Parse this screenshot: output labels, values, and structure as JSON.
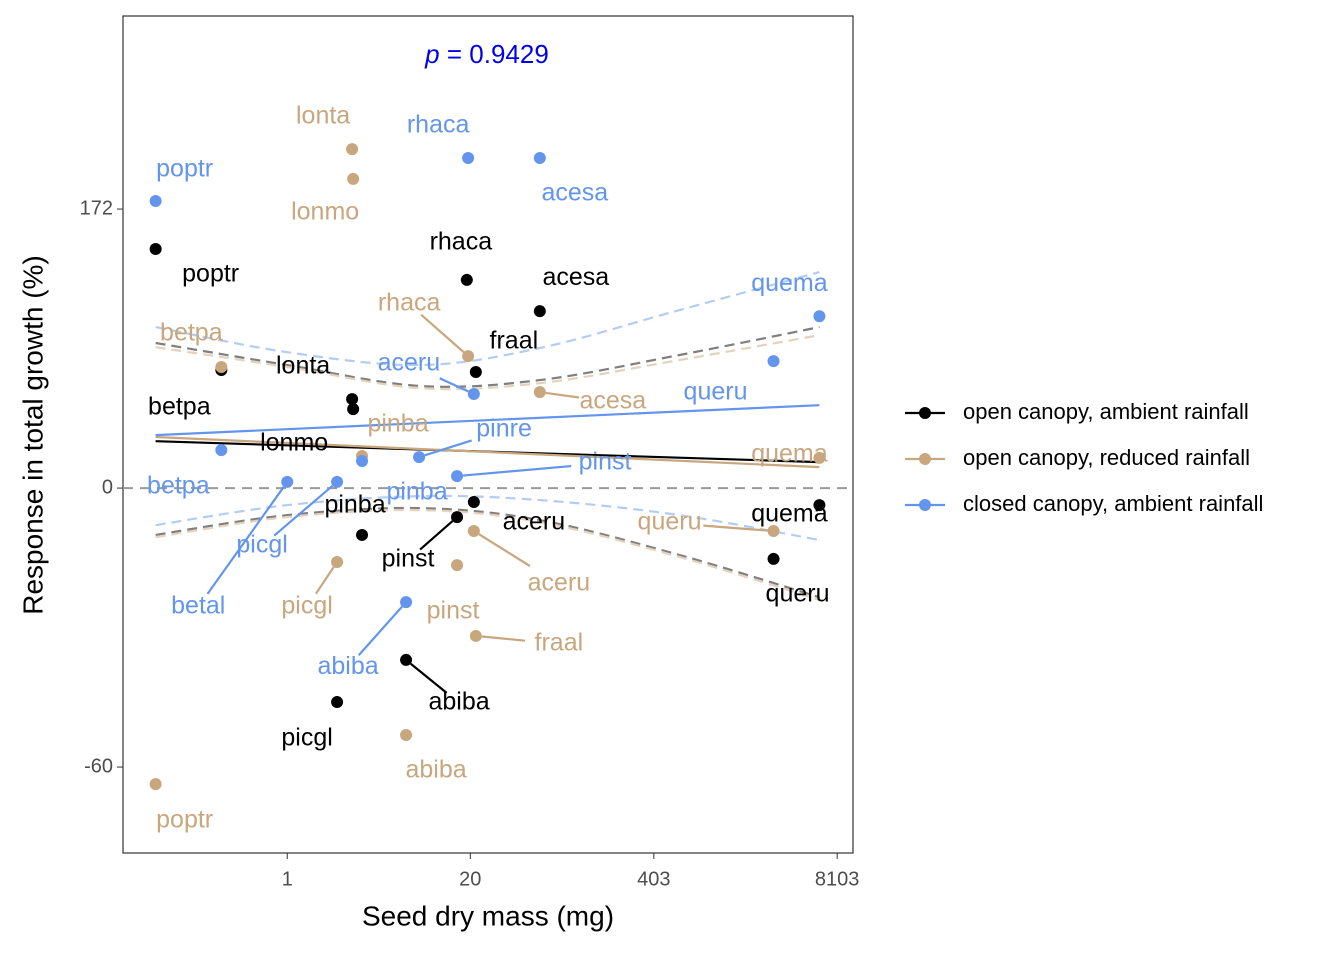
{
  "chart_data": {
    "type": "scatter",
    "annotation_var": "p",
    "annotation_value": "= 0.9429",
    "annotation_color": "#0000ee",
    "xlabel": "Seed dry mass (mg)",
    "ylabel": "Response in total growth (%)",
    "xscale": "log",
    "xlim": [
      0.068,
      10500
    ],
    "xticks": [
      1,
      20,
      403,
      8103
    ],
    "ylim": [
      -1.308,
      1.692
    ],
    "yticks": [
      {
        "value": -1,
        "label": "-60"
      },
      {
        "value": 0,
        "label": "0"
      },
      {
        "value": 1,
        "label": "172"
      }
    ],
    "hline": 0,
    "grid": false,
    "legend": "right",
    "series": [
      {
        "name": "open canopy, ambient rainfall",
        "color": "#000000",
        "band_color": "#7f7f7f",
        "labels": [
          "poptr",
          "betpa",
          "lonta",
          "lonmo",
          "rhaca",
          "acesa",
          "fraal",
          "pinba",
          "picgl",
          "abiba",
          "pinst",
          "aceru",
          "quema",
          "queru"
        ],
        "x": [
          0.116,
          0.34,
          2.89,
          2.94,
          18.9,
          62.4,
          21.9,
          3.4,
          2.26,
          6.99,
          16.1,
          21.2,
          6060,
          2860
        ],
        "values": [
          0.857,
          0.423,
          0.319,
          0.283,
          0.746,
          0.634,
          0.416,
          -0.168,
          -0.767,
          -0.616,
          -0.104,
          -0.05,
          -0.061,
          -0.254
        ],
        "fit_x": [
          0.116,
          6060
        ],
        "fit_values": [
          0.168,
          0.093
        ],
        "band_x": [
          0.116,
          1,
          8.8,
          62.4,
          614,
          6060
        ],
        "ci_upper": [
          0.52,
          0.441,
          0.366,
          0.387,
          0.477,
          0.577
        ],
        "ci_lower": [
          -0.168,
          -0.097,
          -0.072,
          -0.115,
          -0.24,
          -0.391
        ]
      },
      {
        "name": "open canopy, reduced rainfall",
        "color": "#c8a67e",
        "band_color": "#e3d3bd",
        "labels": [
          "lonta",
          "lonmo",
          "betpa",
          "rhaca",
          "acesa",
          "pinba",
          "picgl",
          "pinst",
          "aceru",
          "fraal",
          "abiba",
          "poptr",
          "quema",
          "queru"
        ],
        "x": [
          2.89,
          2.94,
          0.34,
          19.3,
          62.4,
          3.4,
          2.26,
          16.1,
          21.2,
          21.9,
          6.99,
          0.116,
          6060,
          2860
        ],
        "values": [
          1.215,
          1.108,
          0.434,
          0.473,
          0.344,
          0.115,
          -0.265,
          -0.276,
          -0.154,
          -0.53,
          -0.885,
          -1.061,
          0.108,
          -0.154
        ],
        "fit_x": [
          0.116,
          6060
        ],
        "fit_values": [
          0.183,
          0.075
        ],
        "band_x": [
          0.116,
          1,
          8.8,
          62.4,
          614,
          6060
        ],
        "ci_upper": [
          0.505,
          0.434,
          0.358,
          0.376,
          0.459,
          0.548
        ],
        "ci_lower": [
          -0.176,
          -0.104,
          -0.079,
          -0.122,
          -0.247,
          -0.401
        ]
      },
      {
        "name": "closed canopy, ambient rainfall",
        "color": "#6495ed",
        "band_color": "#b3cdf2",
        "labels": [
          "poptr",
          "rhaca",
          "acesa",
          "betpa",
          "aceru",
          "pinre",
          "pinst",
          "pinba",
          "betal",
          "picgl",
          "abiba",
          "quema",
          "queru"
        ],
        "x": [
          0.116,
          19.3,
          62.4,
          0.34,
          21.2,
          8.65,
          16.1,
          3.4,
          1,
          2.26,
          6.99,
          6060,
          2860
        ],
        "values": [
          1.029,
          1.183,
          1.183,
          0.136,
          0.337,
          0.111,
          0.043,
          0.097,
          0.022,
          0.022,
          -0.409,
          0.616,
          0.455
        ],
        "fit_x": [
          0.116,
          6060
        ],
        "fit_values": [
          0.19,
          0.297
        ],
        "band_x": [
          0.116,
          1,
          8.8,
          62.4,
          614,
          6060
        ],
        "ci_upper": [
          0.577,
          0.487,
          0.441,
          0.502,
          0.638,
          0.774
        ],
        "ci_lower": [
          -0.133,
          -0.061,
          -0.029,
          -0.043,
          -0.097,
          -0.186
        ]
      }
    ]
  }
}
